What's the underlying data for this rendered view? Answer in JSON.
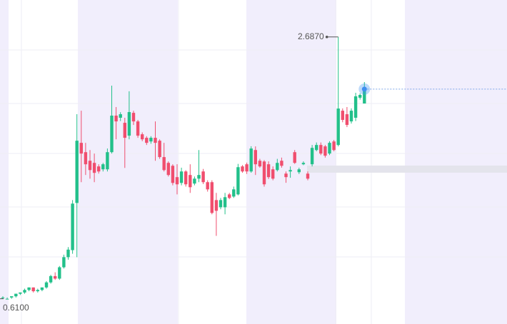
{
  "chart_data": {
    "type": "candlestick",
    "up_color": "#22c08a",
    "down_color": "#f04e6e",
    "ylim": [
      0.41,
      2.98
    ],
    "high_label": "2.6870",
    "low_label": "0.6100",
    "open": [
      0.62,
      0.61,
      0.62,
      0.63,
      0.65,
      0.66,
      0.68,
      0.7,
      0.67,
      0.68,
      0.7,
      0.74,
      0.79,
      0.77,
      0.86,
      0.94,
      0.996,
      1.37,
      1.847,
      1.773,
      1.705,
      1.688,
      1.66,
      1.637,
      1.637,
      1.773,
      2.063,
      2.046,
      2.006,
      1.904,
      2.085,
      2.017,
      1.915,
      1.887,
      1.858,
      1.887,
      1.864,
      1.734,
      1.688,
      1.665,
      1.575,
      1.529,
      1.62,
      1.592,
      1.524,
      1.563,
      1.62,
      1.535,
      1.535,
      1.393,
      1.336,
      1.336,
      1.438,
      1.421,
      1.438,
      1.66,
      1.677,
      1.62,
      1.79,
      1.705,
      1.699,
      1.677,
      1.637,
      1.631,
      1.705,
      1.603,
      1.62,
      1.773,
      1.614,
      1.677,
      1.603,
      1.677,
      1.79,
      1.83,
      1.819,
      1.762,
      1.858,
      1.83,
      2.102,
      2.074,
      2.017,
      2.046,
      2.205,
      2.159
    ],
    "high": [
      0.63,
      0.62,
      0.63,
      0.65,
      0.66,
      0.69,
      0.7,
      0.7,
      0.69,
      0.7,
      0.75,
      0.8,
      0.82,
      0.87,
      0.96,
      1.02,
      1.393,
      2.074,
      2.102,
      1.847,
      1.79,
      1.762,
      1.677,
      1.688,
      1.802,
      2.301,
      2.131,
      2.09,
      2.046,
      2.256,
      2.102,
      2.029,
      1.93,
      1.9,
      1.9,
      2.017,
      1.875,
      1.847,
      1.7,
      1.677,
      1.677,
      1.65,
      1.63,
      1.677,
      1.58,
      1.79,
      1.64,
      1.55,
      1.55,
      1.45,
      1.41,
      1.45,
      1.45,
      1.5,
      1.68,
      1.67,
      1.69,
      1.82,
      1.819,
      1.72,
      1.71,
      1.7,
      1.66,
      1.72,
      1.73,
      1.62,
      1.66,
      1.79,
      1.65,
      1.7,
      1.62,
      1.83,
      1.85,
      1.85,
      1.83,
      1.86,
      1.87,
      2.687,
      2.12,
      2.131,
      2.12,
      2.244,
      2.24,
      2.329
    ],
    "low": [
      0.61,
      0.61,
      0.61,
      0.62,
      0.64,
      0.65,
      0.67,
      0.66,
      0.66,
      0.67,
      0.69,
      0.73,
      0.76,
      0.76,
      0.85,
      0.92,
      0.967,
      0.94,
      1.535,
      1.592,
      1.563,
      1.535,
      1.603,
      1.62,
      1.62,
      1.762,
      1.875,
      2.02,
      1.648,
      1.875,
      1.989,
      1.887,
      1.86,
      1.83,
      1.84,
      1.705,
      1.72,
      1.62,
      1.58,
      1.51,
      1.438,
      1.51,
      1.5,
      1.45,
      1.51,
      1.535,
      1.52,
      1.46,
      1.28,
      1.109,
      1.32,
      1.28,
      1.4,
      1.41,
      1.43,
      1.61,
      1.6,
      1.61,
      1.592,
      1.65,
      1.5,
      1.56,
      1.55,
      1.62,
      1.65,
      1.53,
      1.57,
      1.68,
      1.6,
      1.67,
      1.55,
      1.66,
      1.78,
      1.75,
      1.73,
      1.75,
      1.78,
      1.819,
      2.01,
      1.972,
      2.0,
      2.02,
      2.19,
      2.159
    ],
    "close": [
      0.62,
      0.61,
      0.63,
      0.65,
      0.66,
      0.68,
      0.7,
      0.67,
      0.68,
      0.7,
      0.74,
      0.79,
      0.77,
      0.86,
      0.94,
      1.0,
      1.365,
      1.864,
      1.762,
      1.677,
      1.631,
      1.609,
      1.62,
      1.677,
      1.773,
      2.063,
      2.017,
      2.074,
      1.887,
      2.091,
      2.017,
      1.904,
      1.875,
      1.847,
      1.887,
      1.847,
      1.734,
      1.631,
      1.592,
      1.529,
      1.518,
      1.62,
      1.518,
      1.495,
      1.563,
      1.592,
      1.535,
      1.478,
      1.291,
      1.308,
      1.393,
      1.416,
      1.41,
      1.478,
      1.654,
      1.62,
      1.62,
      1.802,
      1.677,
      1.66,
      1.518,
      1.575,
      1.563,
      1.688,
      1.665,
      1.575,
      1.631,
      1.688,
      1.637,
      1.688,
      1.563,
      1.807,
      1.83,
      1.762,
      1.745,
      1.847,
      1.79,
      2.119,
      2.029,
      1.989,
      2.102,
      2.216,
      2.227,
      2.273
    ]
  }
}
